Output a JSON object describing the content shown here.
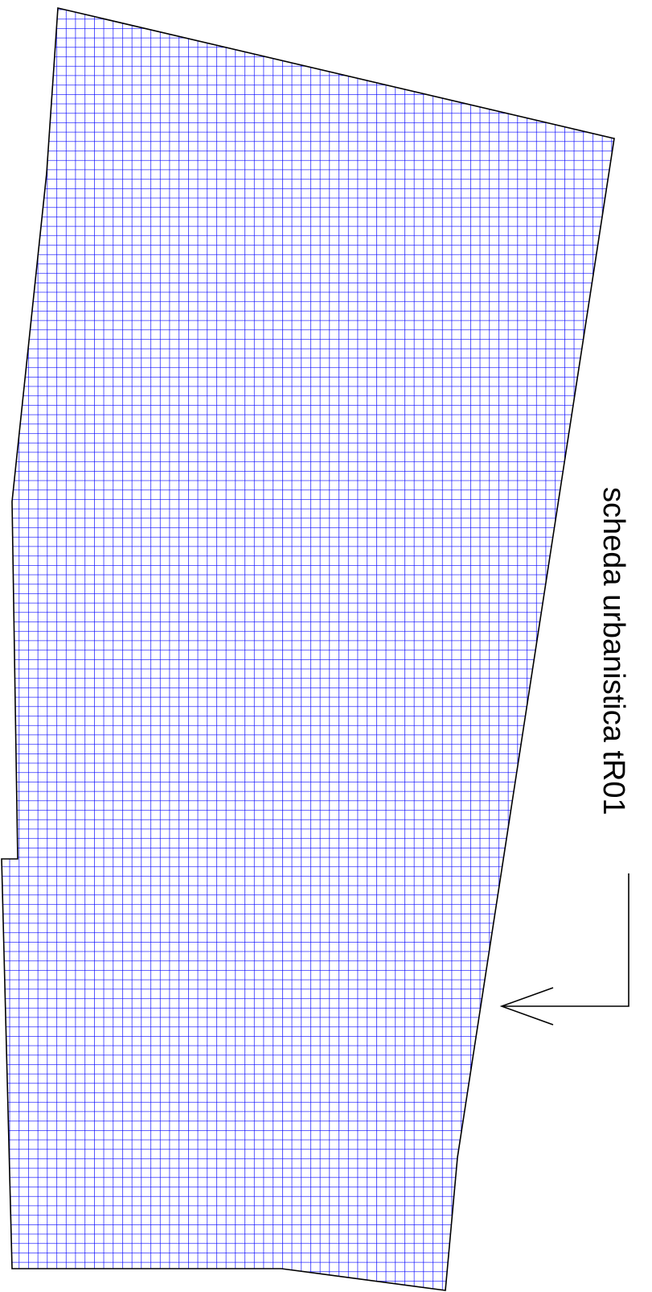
{
  "map": {
    "label": "scheda urbanistica tR01",
    "colors": {
      "hatch": "#0000ff",
      "outline": "#000000",
      "background": "#ffffff",
      "leader": "#000000"
    },
    "hatch_pattern": "grid"
  }
}
